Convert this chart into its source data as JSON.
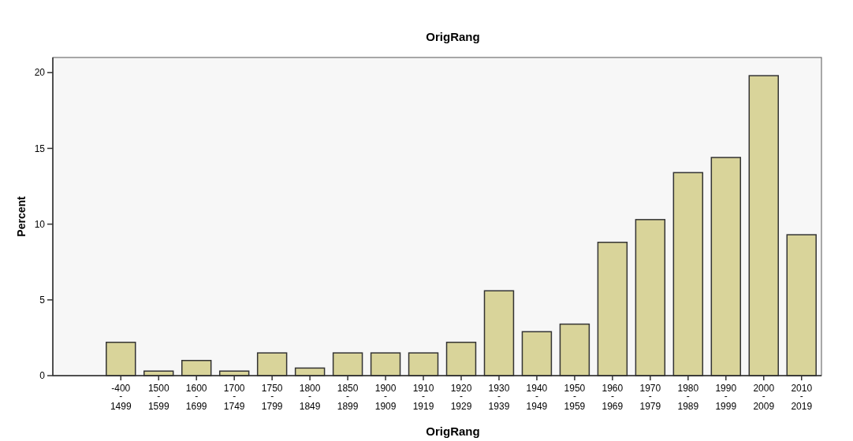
{
  "chart_data": {
    "type": "bar",
    "title": "OrigRang",
    "xlabel": "OrigRang",
    "ylabel": "Percent",
    "categories": [
      "-400 - 1499",
      "1500 - 1599",
      "1600 - 1699",
      "1700 - 1749",
      "1750 - 1799",
      "1800 - 1849",
      "1850 - 1899",
      "1900 - 1909",
      "1910 - 1919",
      "1920 - 1929",
      "1930 - 1939",
      "1940 - 1949",
      "1950 - 1959",
      "1960 - 1969",
      "1970 - 1979",
      "1980 - 1989",
      "1990 - 1999",
      "2000 - 2009",
      "2010 - 2019"
    ],
    "values": [
      2.2,
      0.3,
      1.0,
      0.3,
      1.5,
      0.5,
      1.5,
      1.5,
      1.5,
      2.2,
      5.6,
      2.9,
      3.4,
      8.8,
      10.3,
      13.4,
      14.4,
      19.8,
      9.3
    ],
    "color": "#d9d49a",
    "ylim": [
      0,
      21
    ],
    "yticks": [
      0,
      5,
      10,
      15,
      20
    ],
    "grid": false
  }
}
